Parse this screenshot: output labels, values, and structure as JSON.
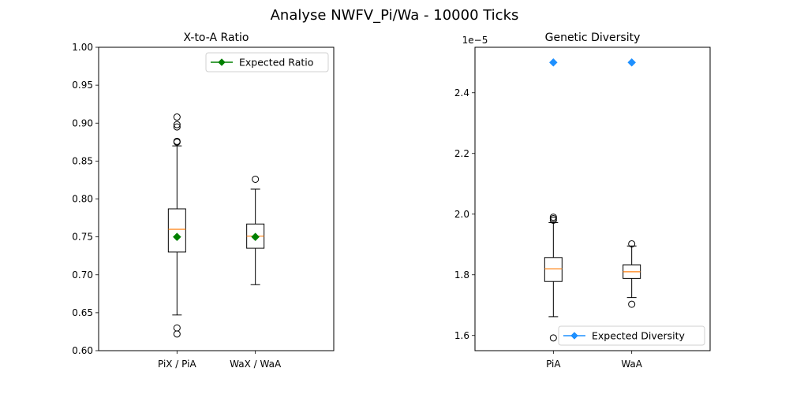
{
  "figure": {
    "title": "Analyse NWFV_Pi/Wa - 10000 Ticks"
  },
  "chart_data": [
    {
      "type": "box",
      "title": "X-to-A Ratio",
      "categories": [
        "PiX / PiA",
        "WaX / WaA"
      ],
      "ylim": [
        0.6,
        1.0
      ],
      "yticks": [
        "0.60",
        "0.65",
        "0.70",
        "0.75",
        "0.80",
        "0.85",
        "0.90",
        "0.95",
        "1.00"
      ],
      "boxes": [
        {
          "whisker_low": 0.647,
          "q1": 0.73,
          "median": 0.76,
          "q3": 0.787,
          "whisker_high": 0.87,
          "outliers": [
            0.63,
            0.622,
            0.875,
            0.876,
            0.895,
            0.898,
            0.908
          ]
        },
        {
          "whisker_low": 0.687,
          "q1": 0.735,
          "median": 0.751,
          "q3": 0.767,
          "whisker_high": 0.813,
          "outliers": [
            0.826
          ]
        }
      ],
      "expected": {
        "label": "Expected Ratio",
        "values": [
          0.75,
          0.75
        ],
        "color": "#008000",
        "marker": "diamond"
      },
      "legend_position": "upper right",
      "grid": false
    },
    {
      "type": "box",
      "title": "Genetic Diversity",
      "categories": [
        "PiA",
        "WaA"
      ],
      "ylim": [
        1.55e-05,
        2.55e-05
      ],
      "yticks": [
        "1.6",
        "1.8",
        "2.0",
        "2.2",
        "2.4"
      ],
      "offset_label": "1e−5",
      "boxes": [
        {
          "whisker_low": 1.662e-05,
          "q1": 1.778e-05,
          "median": 1.82e-05,
          "q3": 1.857e-05,
          "whisker_high": 1.972e-05,
          "outliers": [
            1.592e-05,
            1.98e-05,
            1.985e-05,
            1.99e-05
          ]
        },
        {
          "whisker_low": 1.725e-05,
          "q1": 1.788e-05,
          "median": 1.81e-05,
          "q3": 1.833e-05,
          "whisker_high": 1.895e-05,
          "outliers": [
            1.703e-05,
            1.902e-05
          ]
        }
      ],
      "expected": {
        "label": "Expected Diversity",
        "values": [
          2.5e-05,
          2.5e-05
        ],
        "color": "#1e90ff",
        "marker": "diamond"
      },
      "legend_position": "lower right",
      "grid": false
    }
  ],
  "colors": {
    "median": "#ff7f0e",
    "box": "#000000"
  }
}
